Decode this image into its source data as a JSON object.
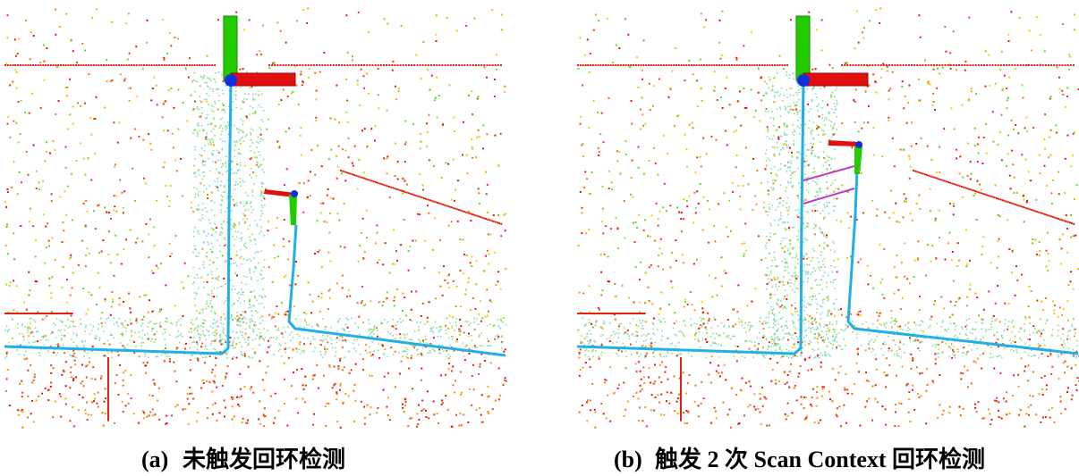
{
  "figure": {
    "panels": [
      {
        "tag": "(a)",
        "caption": "未触发回环检测"
      },
      {
        "tag": "(b)",
        "caption": "触发 2 次 Scan Context 回环检测"
      }
    ]
  }
}
